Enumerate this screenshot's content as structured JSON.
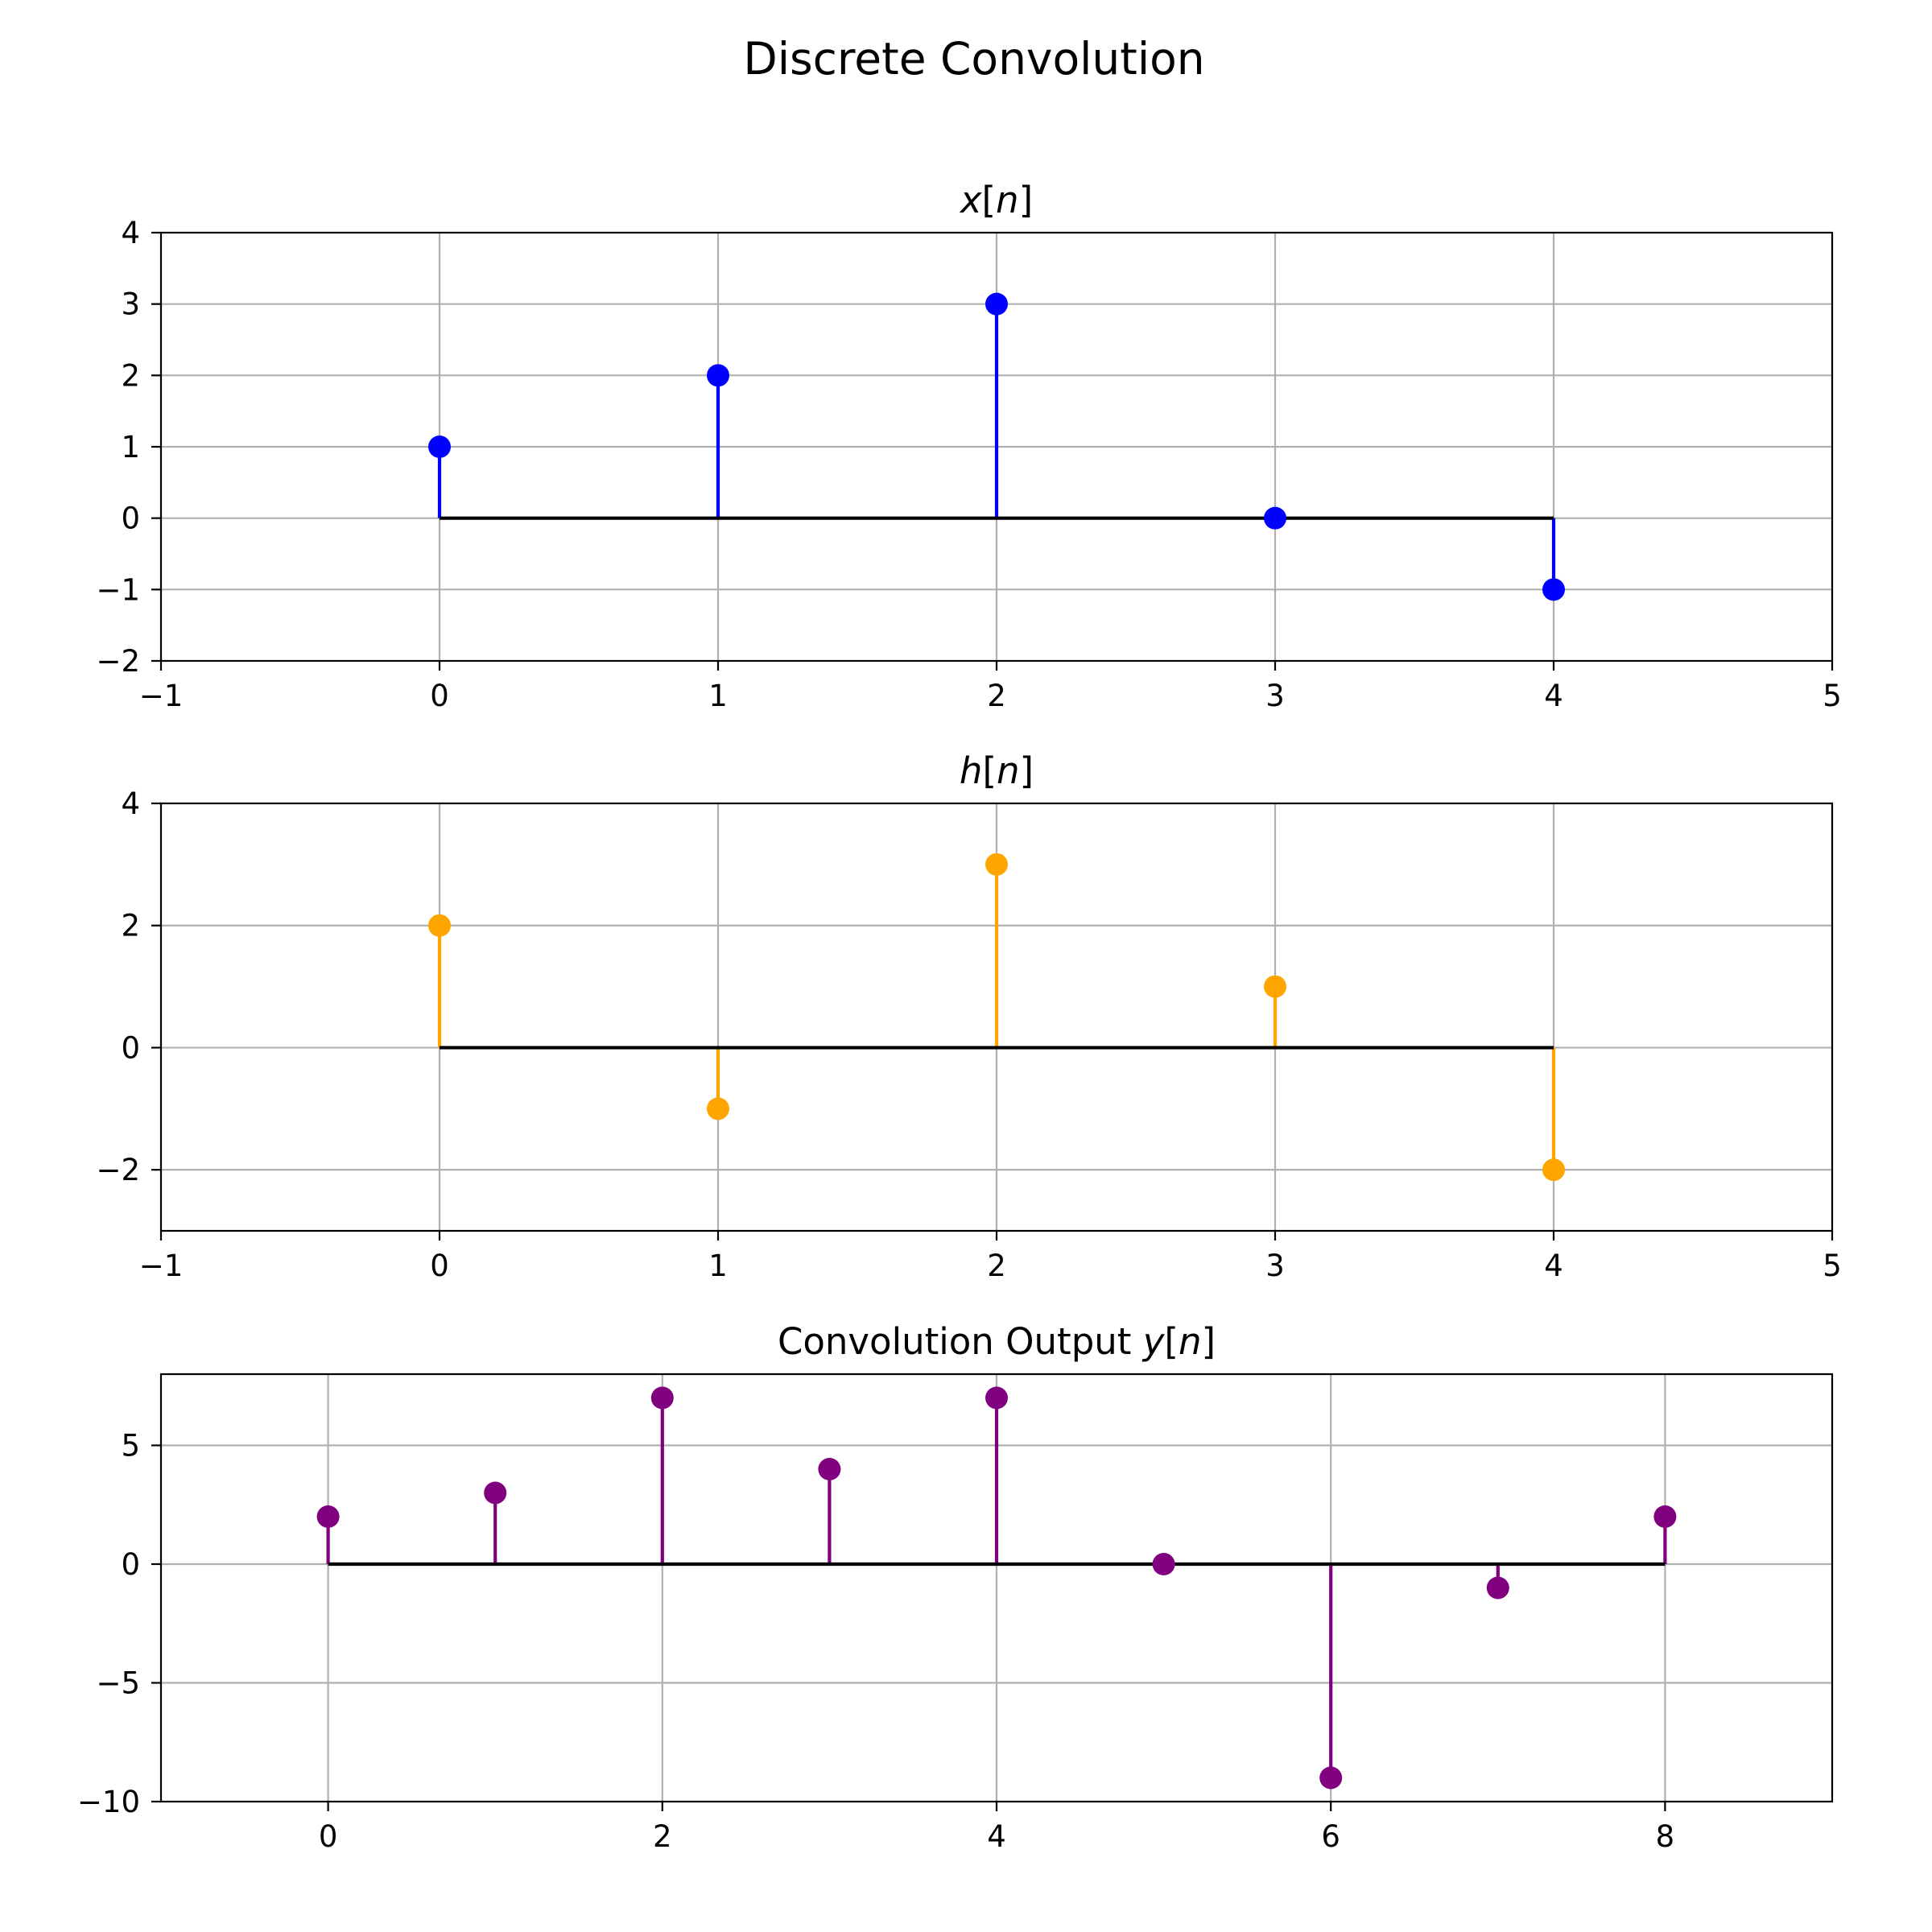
{
  "figure": {
    "title": "Discrete Convolution"
  },
  "chart_data": [
    {
      "type": "stem",
      "title": "x[n]",
      "color": "#0000ff",
      "x": [
        0,
        1,
        2,
        3,
        4
      ],
      "values": [
        1,
        2,
        3,
        0,
        -1
      ],
      "xlim": [
        -1,
        5
      ],
      "ylim": [
        -2,
        4
      ],
      "xticks": [
        -1,
        0,
        1,
        2,
        3,
        4,
        5
      ],
      "yticks": [
        -2,
        -1,
        0,
        1,
        2,
        3,
        4
      ],
      "grid": true
    },
    {
      "type": "stem",
      "title": "h[n]",
      "color": "#ffa500",
      "x": [
        0,
        1,
        2,
        3,
        4
      ],
      "values": [
        2,
        -1,
        3,
        1,
        -2
      ],
      "xlim": [
        -1,
        5
      ],
      "ylim": [
        -3,
        4
      ],
      "xticks": [
        -1,
        0,
        1,
        2,
        3,
        4,
        5
      ],
      "yticks": [
        -2,
        0,
        2,
        4
      ],
      "grid": true
    },
    {
      "type": "stem",
      "title": "Convolution Output y[n]",
      "color": "#800080",
      "x": [
        0,
        1,
        2,
        3,
        4,
        5,
        6,
        7,
        8
      ],
      "values": [
        2,
        3,
        7,
        4,
        7,
        0,
        -9,
        -1,
        2
      ],
      "xlim": [
        -1,
        9
      ],
      "ylim": [
        -10,
        8
      ],
      "xticks": [
        0,
        2,
        4,
        6,
        8
      ],
      "yticks": [
        -10,
        -5,
        0,
        5
      ],
      "grid": true
    }
  ]
}
